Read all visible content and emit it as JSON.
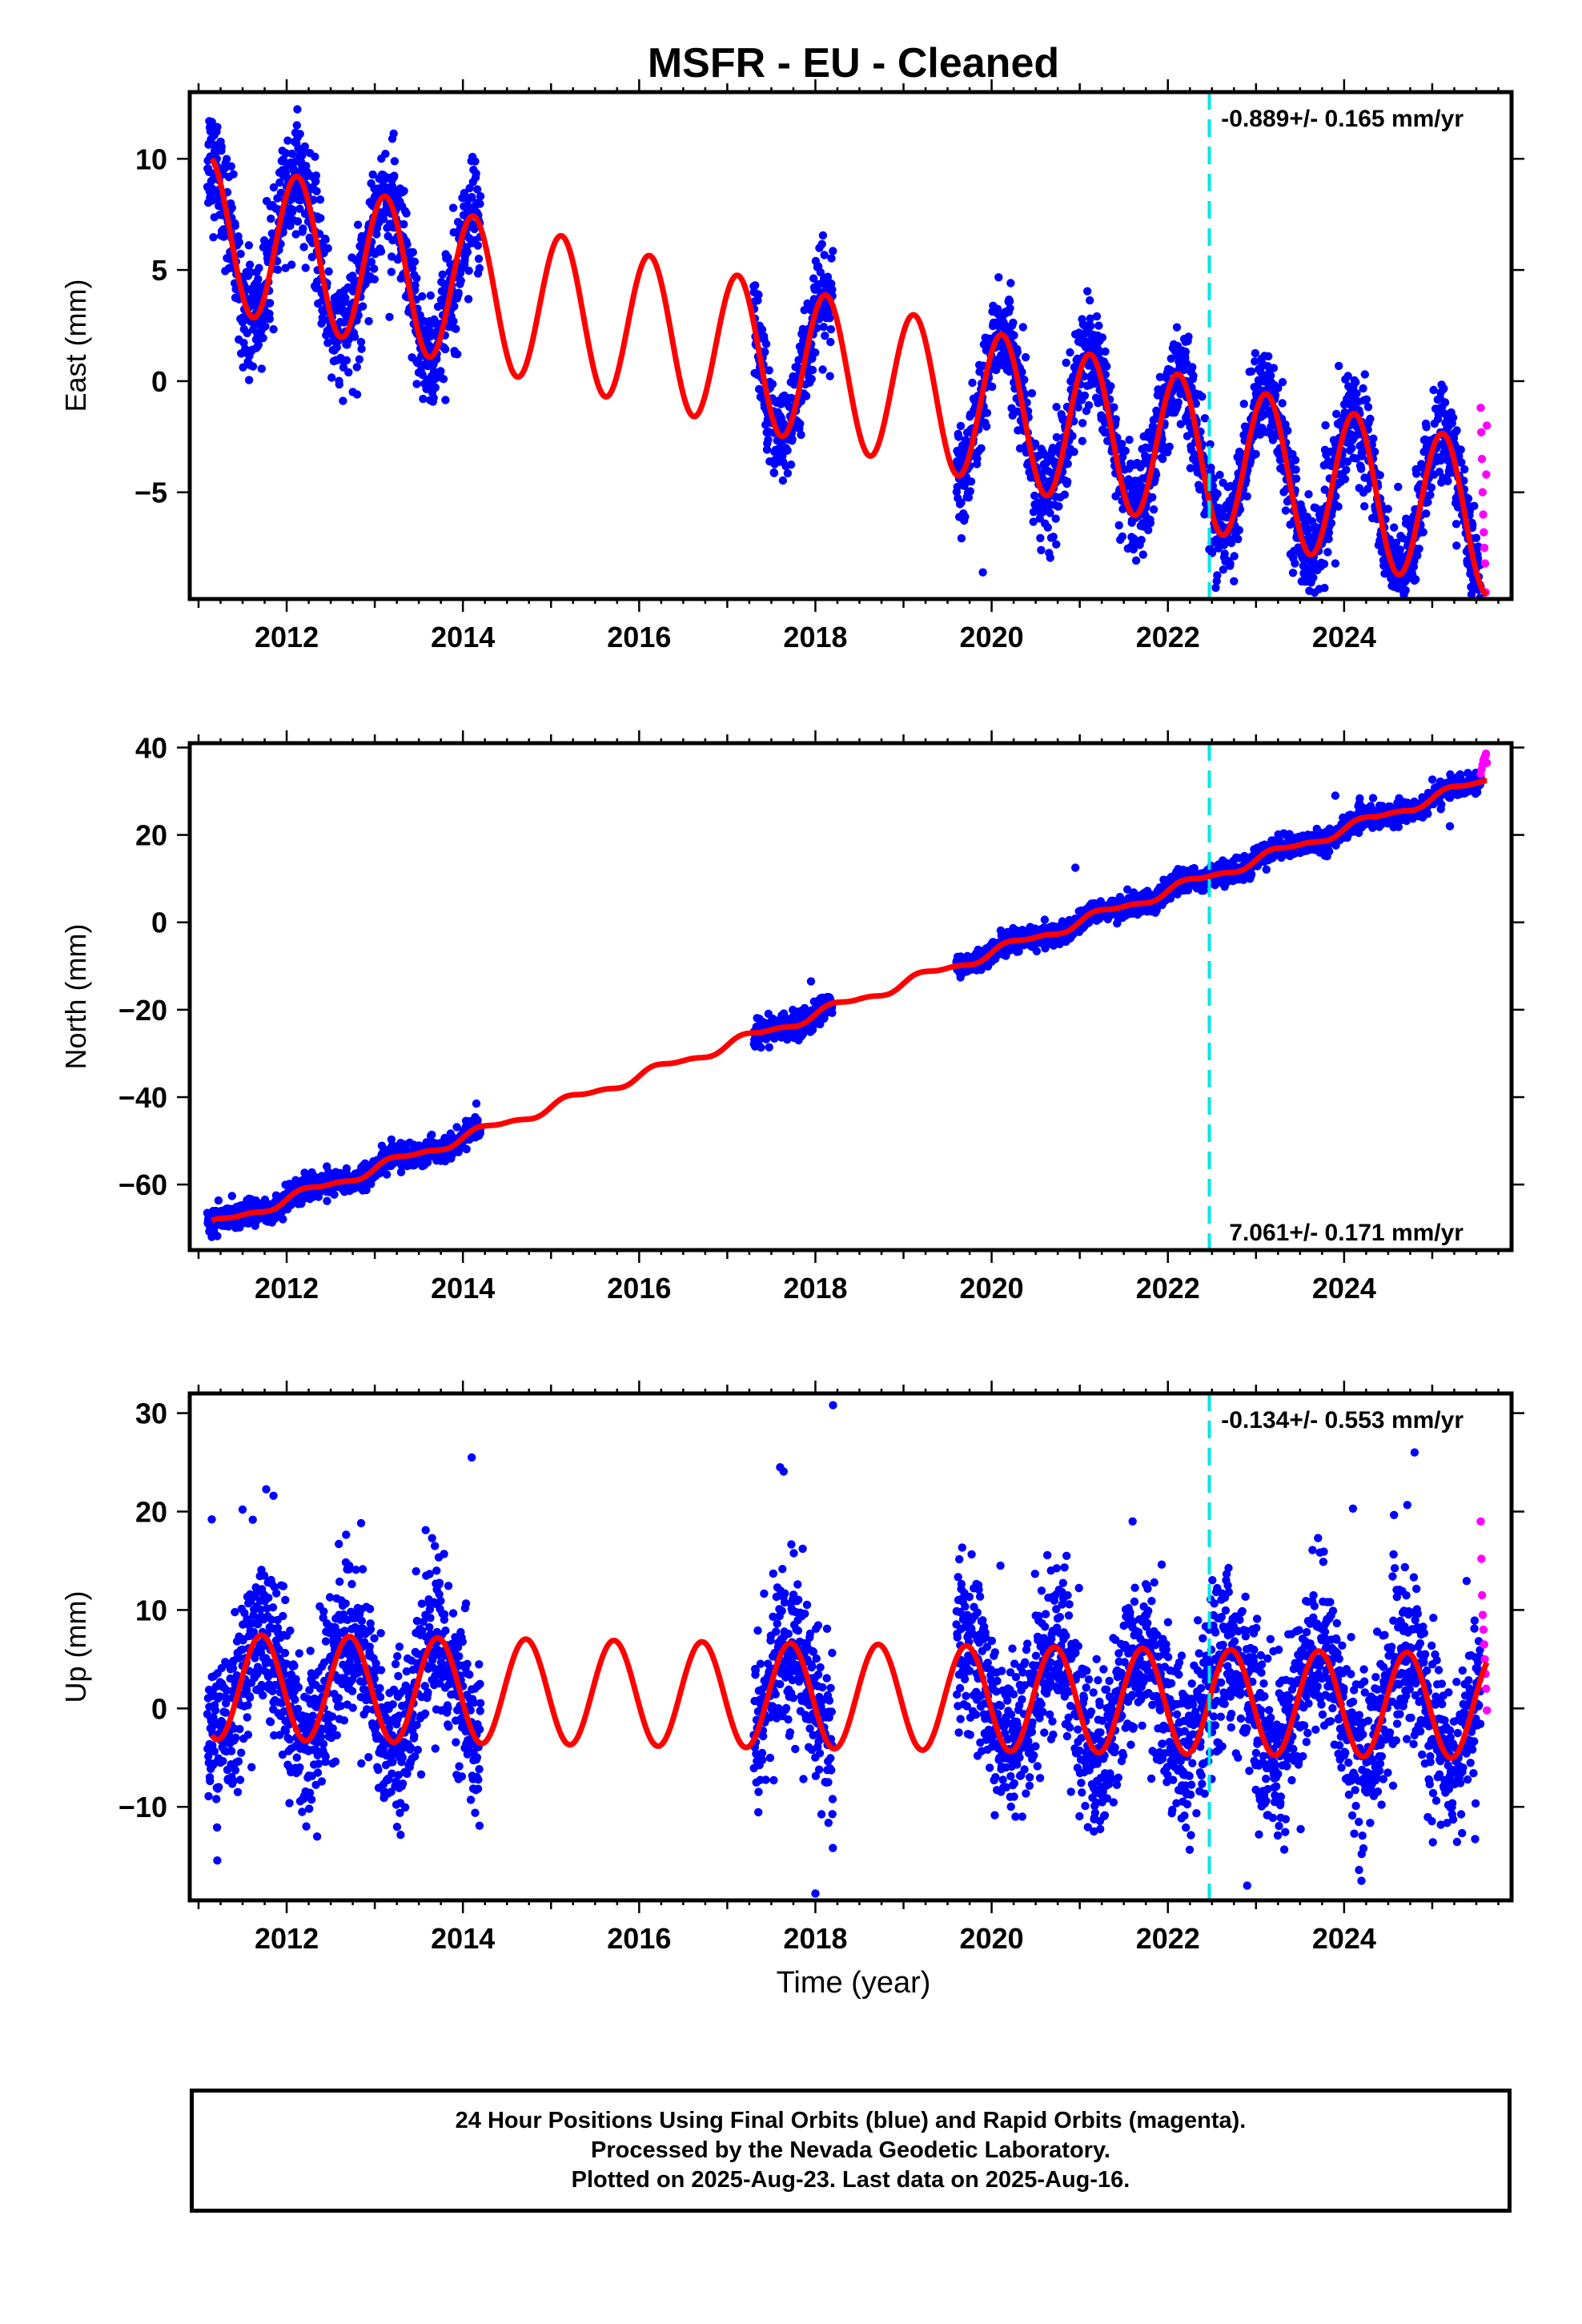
{
  "title": "MSFR  - EU - Cleaned",
  "xlabel": "Time (year)",
  "footer": {
    "line1": "24 Hour Positions Using Final Orbits (blue) and Rapid Orbits (magenta).",
    "line2": "Processed by the Nevada Geodetic Laboratory.",
    "line3": "Plotted on 2025-Aug-23. Last data on 2025-Aug-16."
  },
  "colors": {
    "final_orbits": "#0000ff",
    "rapid_orbits": "#ff00ff",
    "model_fit": "#ff0000",
    "event_line": "#00e5e5"
  },
  "chart_data": [
    {
      "type": "scatter",
      "ylabel": "East (mm)",
      "rate": "-0.889+/- 0.165 mm/yr",
      "rate_position": "top-right",
      "xlim": [
        2010.9,
        2025.9
      ],
      "ylim": [
        -9.8,
        13.0
      ],
      "x_ticks": [
        2012,
        2014,
        2016,
        2018,
        2020,
        2022,
        2024
      ],
      "y_ticks": [
        10,
        5,
        0,
        -5
      ],
      "y_tick_labels": [
        "10",
        "5",
        "0",
        "−5"
      ],
      "event_lines": [
        2022.47
      ],
      "model": {
        "intercept_2011": 6.8,
        "slope": -0.889,
        "annual_cos": 2.5,
        "annual_sin": 2.3,
        "semiannual_cos": 0.0,
        "semiannual_sin": 0.0,
        "phase_offset": 0.0
      },
      "data_segments": [
        {
          "start": 2011.1,
          "end": 2014.2,
          "scatter": 1.3
        },
        {
          "start": 2017.3,
          "end": 2018.2,
          "scatter": 1.1
        },
        {
          "start": 2019.6,
          "end": 2025.55,
          "scatter": 1.1
        }
      ],
      "rapid": {
        "start": 2025.55,
        "end": 2025.62,
        "values": [
          -1.2,
          -2.3,
          -3.5,
          -5.0,
          -6.0,
          -6.8,
          -7.5,
          -8.2,
          -9.5,
          -4.2,
          -2.0
        ]
      },
      "outliers": [
        {
          "x": 2019.9,
          "y": -8.6
        },
        {
          "x": 2020.7,
          "y": -7.0
        },
        {
          "x": 2022.75,
          "y": -9.0
        },
        {
          "x": 2023.9,
          "y": -8.2
        },
        {
          "x": 2012.8,
          "y": -0.6
        },
        {
          "x": 2013.65,
          "y": -0.2
        }
      ]
    },
    {
      "type": "scatter",
      "ylabel": "North (mm)",
      "rate": "7.061+/- 0.171 mm/yr",
      "rate_position": "bottom-right",
      "xlim": [
        2010.9,
        2025.9
      ],
      "ylim": [
        -75.0,
        41.0
      ],
      "x_ticks": [
        2012,
        2014,
        2016,
        2018,
        2020,
        2022,
        2024
      ],
      "y_ticks": [
        40,
        20,
        0,
        -20,
        -40,
        -60
      ],
      "y_tick_labels": [
        "40",
        "20",
        "0",
        "−20",
        "−40",
        "−60"
      ],
      "event_lines": [
        2022.47
      ],
      "model": {
        "intercept_2011": -70.5,
        "slope": 7.061,
        "annual_cos": 0.0,
        "annual_sin": 1.0,
        "semiannual_cos": 0.0,
        "semiannual_sin": 0.4,
        "phase_offset": 0.0
      },
      "data_segments": [
        {
          "start": 2011.1,
          "end": 2014.2,
          "scatter": 1.3
        },
        {
          "start": 2017.3,
          "end": 2018.2,
          "scatter": 1.4
        },
        {
          "start": 2019.6,
          "end": 2025.55,
          "scatter": 1.2
        }
      ],
      "rapid": {
        "start": 2025.55,
        "end": 2025.62,
        "values": [
          34.0,
          35.0,
          36.0,
          37.0,
          37.5,
          38.0,
          38.6,
          36.5
        ]
      },
      "outliers": [
        {
          "x": 2011.15,
          "y": -72.0
        },
        {
          "x": 2017.95,
          "y": -13.5
        },
        {
          "x": 2020.95,
          "y": 12.5
        },
        {
          "x": 2025.2,
          "y": 22.0
        },
        {
          "x": 2023.9,
          "y": 29.0
        }
      ]
    },
    {
      "type": "scatter",
      "ylabel": "Up (mm)",
      "rate": "-0.134+/- 0.553 mm/yr",
      "rate_position": "top-right",
      "xlim": [
        2010.9,
        2025.9
      ],
      "ylim": [
        -19.5,
        32.0
      ],
      "x_ticks": [
        2012,
        2014,
        2016,
        2018,
        2020,
        2022,
        2024
      ],
      "y_ticks": [
        30,
        20,
        10,
        0,
        -10
      ],
      "y_tick_labels": [
        "30",
        "20",
        "10",
        "0",
        "−10"
      ],
      "event_lines": [
        2022.47
      ],
      "model": {
        "intercept_2011": 2.2,
        "slope": -0.134,
        "annual_cos": -1.2,
        "annual_sin": -5.2,
        "semiannual_cos": 0.0,
        "semiannual_sin": 0.0,
        "phase_offset": 0.0
      },
      "data_segments": [
        {
          "start": 2011.1,
          "end": 2014.2,
          "scatter": 4.0
        },
        {
          "start": 2017.3,
          "end": 2018.2,
          "scatter": 4.2
        },
        {
          "start": 2019.6,
          "end": 2025.55,
          "scatter": 4.2
        }
      ],
      "rapid": {
        "start": 2025.55,
        "end": 2025.62,
        "values": [
          19.0,
          15.2,
          11.5,
          9.5,
          8.0,
          6.5,
          5.0,
          3.5,
          2.0,
          -0.2
        ]
      },
      "outliers": [
        {
          "x": 2011.15,
          "y": 19.2
        },
        {
          "x": 2011.5,
          "y": 20.2
        },
        {
          "x": 2011.85,
          "y": 21.6
        },
        {
          "x": 2014.1,
          "y": 25.5
        },
        {
          "x": 2017.6,
          "y": 24.5
        },
        {
          "x": 2018.2,
          "y": 30.8
        },
        {
          "x": 2024.8,
          "y": 26.0
        },
        {
          "x": 2018.0,
          "y": -18.8
        },
        {
          "x": 2022.9,
          "y": -18.0
        },
        {
          "x": 2021.6,
          "y": 19.0
        },
        {
          "x": 2024.1,
          "y": 20.3
        },
        {
          "x": 2020.1,
          "y": 14.5
        },
        {
          "x": 2020.85,
          "y": 15.5
        },
        {
          "x": 2013.65,
          "y": 17.3
        }
      ]
    }
  ]
}
